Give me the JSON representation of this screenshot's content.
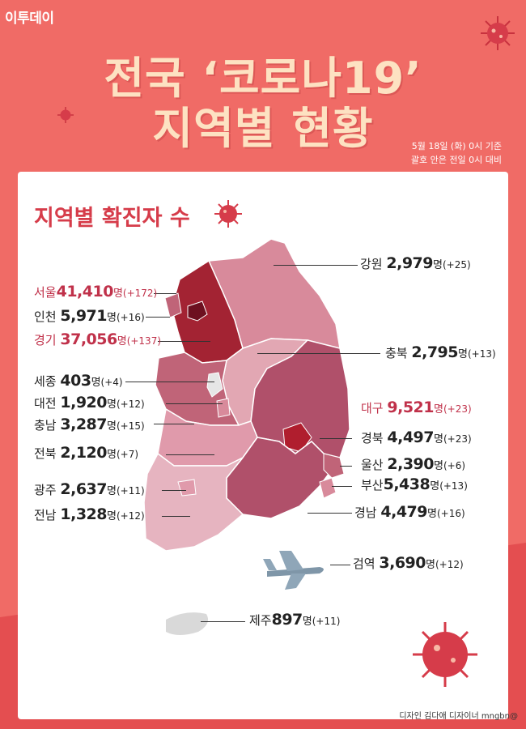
{
  "brand": "이투데이",
  "title": {
    "line1": "전국 ‘코로나19’",
    "line2": "지역별 현황"
  },
  "as_of": {
    "line1": "5월 18일 (화) 0시 기준",
    "line2": "괄호 안은 전일 0시 대비"
  },
  "section_title": "지역별 확진자 수",
  "credit": "디자인 김다애 디자이너 mngbn@",
  "colors": {
    "background": "#f06b66",
    "accent": "#d63c4a",
    "highlight": "#c0314a"
  },
  "regions": [
    {
      "name": "강원",
      "count": "2,979",
      "unit": "명",
      "delta": "(+25)"
    },
    {
      "name": "서울",
      "count": "41,410",
      "unit": "명",
      "delta": "(+172)"
    },
    {
      "name": "인천",
      "count": "5,971",
      "unit": "명",
      "delta": "(+16)"
    },
    {
      "name": "경기",
      "count": "37,056",
      "unit": "명",
      "delta": "(+137)"
    },
    {
      "name": "충북",
      "count": "2,795",
      "unit": "명",
      "delta": "(+13)"
    },
    {
      "name": "세종",
      "count": "403",
      "unit": "명",
      "delta": "(+4)"
    },
    {
      "name": "대전",
      "count": "1,920",
      "unit": "명",
      "delta": "(+12)"
    },
    {
      "name": "충남",
      "count": "3,287",
      "unit": "명",
      "delta": "(+15)"
    },
    {
      "name": "대구",
      "count": "9,521",
      "unit": "명",
      "delta": "(+23)"
    },
    {
      "name": "경북",
      "count": "4,497",
      "unit": "명",
      "delta": "(+23)"
    },
    {
      "name": "전북",
      "count": "2,120",
      "unit": "명",
      "delta": "(+7)"
    },
    {
      "name": "울산",
      "count": "2,390",
      "unit": "명",
      "delta": "(+6)"
    },
    {
      "name": "부산",
      "count": "5,438",
      "unit": "명",
      "delta": "(+13)"
    },
    {
      "name": "광주",
      "count": "2,637",
      "unit": "명",
      "delta": "(+11)"
    },
    {
      "name": "전남",
      "count": "1,328",
      "unit": "명",
      "delta": "(+12)"
    },
    {
      "name": "경남",
      "count": "4,479",
      "unit": "명",
      "delta": "(+16)"
    },
    {
      "name": "검역",
      "count": "3,690",
      "unit": "명",
      "delta": "(+12)"
    },
    {
      "name": "제주",
      "count": "897",
      "unit": "명",
      "delta": "(+11)"
    }
  ]
}
